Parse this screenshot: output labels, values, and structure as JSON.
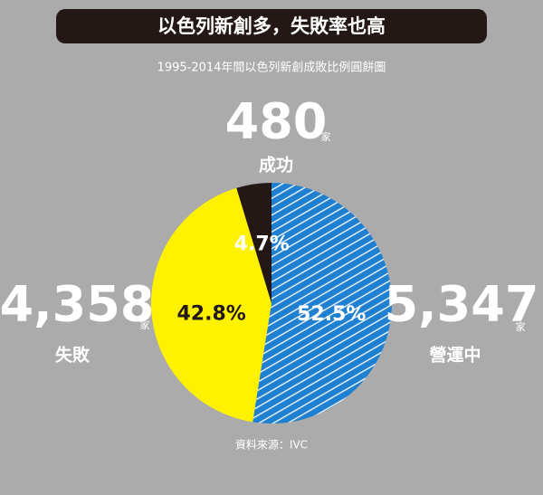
{
  "chart_data": {
    "type": "pie",
    "title": "以色列新創多，失敗率也高",
    "subtitle": "1995-2014年間以色列新創成敗比例圓餅圖",
    "source": "資料來源：IVC",
    "unit": "家",
    "categories": [
      "營運中",
      "失敗",
      "成功"
    ],
    "values": [
      52.5,
      42.8,
      4.7
    ],
    "value_labels": [
      "52.5%",
      "42.8%",
      "4.7%"
    ],
    "counts": [
      {
        "value": 5347,
        "label": "5,347"
      },
      {
        "value": 4358,
        "label": "4,358"
      },
      {
        "value": 480,
        "label": "480"
      }
    ],
    "colors": [
      "#1f7fd0",
      "#fff200",
      "#231815"
    ],
    "hatch": [
      true,
      false,
      false
    ]
  }
}
